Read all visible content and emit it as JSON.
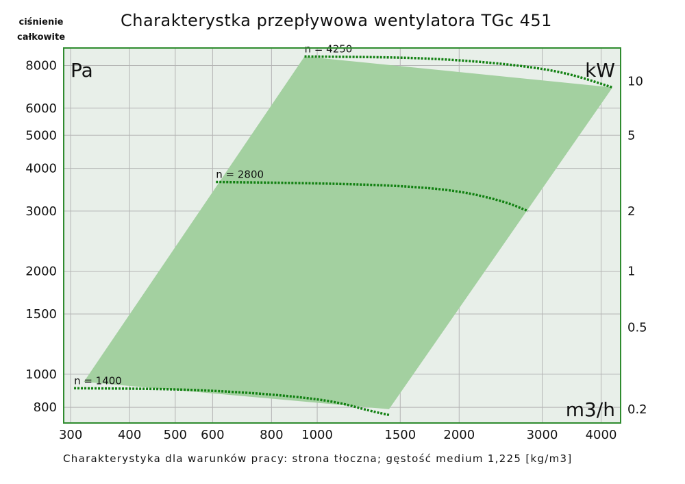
{
  "header": {
    "side_label_line1": "ciśnienie",
    "side_label_line2": "całkowite",
    "title": "Charakterystka przepływowa wentylatora TGc 451"
  },
  "footnote": "Charakterystyka dla warunków pracy: strona tłoczna; gęstość medium 1,225 [kg/m3]",
  "colors": {
    "region_fill": "#a3d0a0",
    "plot_bg": "#e8efe9",
    "frame": "#2e8b2e",
    "grid": "#b4b4b4",
    "curve": "#118011"
  },
  "chart_data": {
    "type": "area",
    "title": "Charakterystka przepływowa wentylatora TGc 451",
    "x_scale": "log",
    "y_scale": "log",
    "grid": true,
    "xlim": [
      290,
      4400
    ],
    "ylim": [
      720,
      9000
    ],
    "x_unit": "m3/h",
    "y_unit": "Pa",
    "y2_unit": "kW",
    "x_ticks": [
      300,
      400,
      500,
      600,
      800,
      1000,
      1500,
      2000,
      3000,
      4000
    ],
    "y_ticks": [
      800,
      1000,
      1500,
      2000,
      3000,
      4000,
      5000,
      6000,
      8000
    ],
    "y2_ticks": [
      {
        "label": "10",
        "y_at": 7200
      },
      {
        "label": "5",
        "y_at": 5000
      },
      {
        "label": "2",
        "y_at": 3000
      },
      {
        "label": "1",
        "y_at": 2000
      },
      {
        "label": "0.5",
        "y_at": 1370
      },
      {
        "label": "0.2",
        "y_at": 790
      }
    ],
    "operating_region": [
      [
        320,
        950
      ],
      [
        940,
        8500
      ],
      [
        4230,
        6900
      ],
      [
        1420,
        790
      ]
    ],
    "series": [
      {
        "name": "n = 4250",
        "points": [
          [
            940,
            8500
          ],
          [
            1500,
            8450
          ],
          [
            2000,
            8300
          ],
          [
            2700,
            8000
          ],
          [
            3400,
            7600
          ],
          [
            4230,
            6900
          ]
        ]
      },
      {
        "name": "n = 2800",
        "points": [
          [
            610,
            3650
          ],
          [
            1000,
            3620
          ],
          [
            1500,
            3560
          ],
          [
            2000,
            3440
          ],
          [
            2500,
            3200
          ],
          [
            2800,
            3000
          ]
        ]
      },
      {
        "name": "n = 1400",
        "points": [
          [
            305,
            910
          ],
          [
            500,
            905
          ],
          [
            700,
            885
          ],
          [
            900,
            860
          ],
          [
            1100,
            830
          ],
          [
            1300,
            780
          ],
          [
            1420,
            760
          ]
        ]
      }
    ]
  }
}
